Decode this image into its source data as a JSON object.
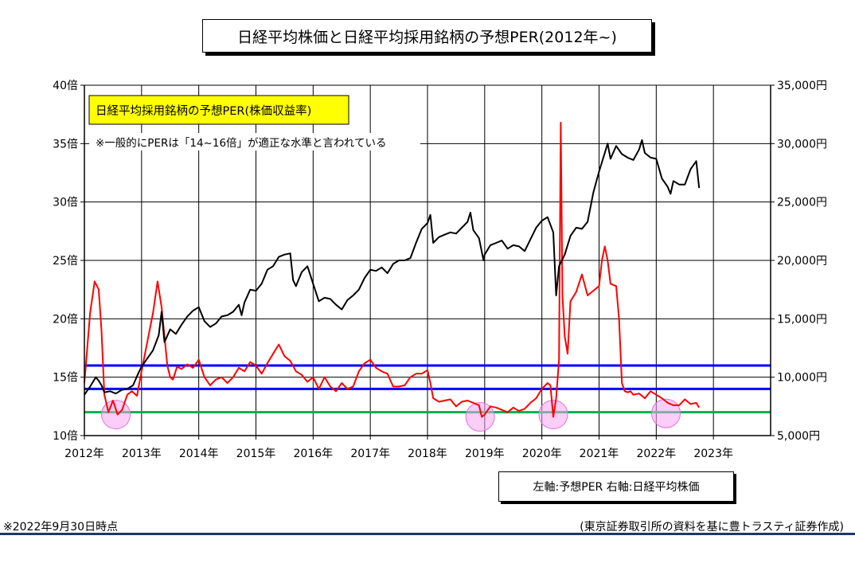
{
  "colors": {
    "per_line": "#ff0000",
    "nikkei_line": "#000000",
    "band": "#0000ff",
    "floor": "#00b050",
    "circle": "#f7a6f0",
    "annotation_bg": "#ffff00",
    "footer_rule": "#1f3864"
  },
  "footer": {
    "date_note": "※2022年9月30日時点",
    "source_note": "(東京証券取引所の資料を基に豊トラスティ証券作成)"
  },
  "chart_data": {
    "type": "line",
    "title": "日経平均株価と日経平均採用銘柄の予想PER(2012年~)",
    "legend_text": "左軸:予想PER 右軸:日経平均株価",
    "annotation_title": "日経平均採用銘柄の予想PER(株価収益率)",
    "annotation_note": "※一般的にPERは「14~16倍」が適正な水準と言われている",
    "x_tick_labels": [
      "2012年",
      "2013年",
      "2014年",
      "2015年",
      "2016年",
      "2017年",
      "2018年",
      "2019年",
      "2020年",
      "2021年",
      "2022年",
      "2023年"
    ],
    "x_ticks": [
      2012,
      2013,
      2014,
      2015,
      2016,
      2017,
      2018,
      2019,
      2020,
      2021,
      2022,
      2023
    ],
    "xlim": [
      2012,
      2024
    ],
    "y_left": {
      "ylim": [
        10,
        40
      ],
      "ticks": [
        10,
        15,
        20,
        25,
        30,
        35,
        40
      ],
      "tick_labels": [
        "10倍",
        "15倍",
        "20倍",
        "25倍",
        "30倍",
        "35倍",
        "40倍"
      ]
    },
    "y_right": {
      "ylim": [
        5000,
        35000
      ],
      "ticks": [
        5000,
        10000,
        15000,
        20000,
        25000,
        30000,
        35000
      ],
      "tick_labels": [
        "5,000円",
        "10,000円",
        "15,000円",
        "20,000円",
        "25,000円",
        "30,000円",
        "35,000円"
      ]
    },
    "grid": true,
    "reference_lines": [
      {
        "axis": "left",
        "value": 16,
        "color": "#0000ff"
      },
      {
        "axis": "left",
        "value": 14,
        "color": "#0000ff"
      },
      {
        "axis": "left",
        "value": 12,
        "color": "#00b050"
      }
    ],
    "highlight_circles": [
      {
        "x": 2012.55,
        "y": 11.8
      },
      {
        "x": 2018.92,
        "y": 11.6
      },
      {
        "x": 2020.2,
        "y": 11.8
      },
      {
        "x": 2022.17,
        "y": 11.9
      }
    ],
    "series": [
      {
        "axis": "left",
        "color": "#ff0000",
        "x": [
          2012.0,
          2012.1,
          2012.18,
          2012.25,
          2012.3,
          2012.35,
          2012.42,
          2012.5,
          2012.58,
          2012.66,
          2012.75,
          2012.83,
          2012.92,
          2013.0,
          2013.1,
          2013.2,
          2013.28,
          2013.35,
          2013.4,
          2013.45,
          2013.5,
          2013.55,
          2013.62,
          2013.7,
          2013.8,
          2013.9,
          2014.0,
          2014.1,
          2014.2,
          2014.3,
          2014.4,
          2014.5,
          2014.6,
          2014.7,
          2014.8,
          2014.9,
          2015.0,
          2015.1,
          2015.2,
          2015.3,
          2015.4,
          2015.5,
          2015.6,
          2015.7,
          2015.8,
          2015.9,
          2016.0,
          2016.1,
          2016.2,
          2016.3,
          2016.4,
          2016.5,
          2016.6,
          2016.7,
          2016.8,
          2016.9,
          2017.0,
          2017.1,
          2017.2,
          2017.3,
          2017.4,
          2017.5,
          2017.6,
          2017.7,
          2017.8,
          2017.9,
          2018.0,
          2018.05,
          2018.1,
          2018.2,
          2018.3,
          2018.4,
          2018.5,
          2018.6,
          2018.7,
          2018.8,
          2018.9,
          2018.95,
          2019.0,
          2019.1,
          2019.2,
          2019.3,
          2019.4,
          2019.5,
          2019.6,
          2019.7,
          2019.8,
          2019.9,
          2020.0,
          2020.1,
          2020.15,
          2020.2,
          2020.25,
          2020.3,
          2020.33,
          2020.36,
          2020.4,
          2020.45,
          2020.5,
          2020.6,
          2020.7,
          2020.8,
          2020.9,
          2021.0,
          2021.05,
          2021.1,
          2021.15,
          2021.2,
          2021.3,
          2021.35,
          2021.4,
          2021.45,
          2021.5,
          2021.55,
          2021.6,
          2021.7,
          2021.8,
          2021.9,
          2022.0,
          2022.1,
          2022.2,
          2022.3,
          2022.4,
          2022.5,
          2022.6,
          2022.7,
          2022.75
        ],
        "values": [
          14.5,
          20.5,
          23.2,
          22.5,
          19.0,
          13.5,
          12.0,
          13.0,
          11.8,
          12.2,
          13.5,
          13.8,
          13.4,
          15.5,
          18.0,
          20.5,
          23.2,
          21.0,
          18.5,
          16.0,
          15.0,
          14.8,
          15.9,
          15.7,
          16.1,
          15.8,
          16.5,
          15.0,
          14.3,
          14.8,
          15.0,
          14.5,
          15.0,
          15.8,
          15.5,
          16.3,
          16.0,
          15.3,
          16.2,
          17.0,
          17.8,
          16.8,
          16.4,
          15.5,
          15.2,
          14.6,
          15.0,
          14.0,
          15.0,
          14.2,
          13.8,
          14.5,
          14.0,
          14.2,
          15.5,
          16.2,
          16.5,
          15.8,
          15.5,
          15.3,
          14.2,
          14.2,
          14.3,
          15.0,
          15.3,
          15.3,
          15.6,
          14.5,
          13.2,
          12.9,
          13.0,
          13.1,
          12.5,
          12.9,
          13.0,
          12.8,
          12.6,
          11.6,
          11.8,
          12.5,
          12.4,
          12.2,
          12.0,
          12.4,
          12.1,
          12.3,
          12.8,
          13.2,
          14.0,
          14.5,
          14.3,
          11.6,
          13.2,
          16.5,
          36.8,
          22.0,
          18.5,
          17.0,
          21.5,
          22.3,
          23.8,
          22.0,
          22.4,
          22.8,
          25.0,
          26.2,
          25.0,
          23.0,
          22.8,
          20.0,
          14.5,
          13.8,
          13.7,
          13.8,
          13.5,
          13.6,
          13.2,
          13.8,
          13.5,
          13.2,
          12.8,
          12.6,
          12.6,
          13.1,
          12.7,
          12.8,
          12.4
        ]
      },
      {
        "axis": "right",
        "color": "#000000",
        "x": [
          2012.0,
          2012.1,
          2012.2,
          2012.25,
          2012.3,
          2012.35,
          2012.45,
          2012.55,
          2012.65,
          2012.75,
          2012.85,
          2012.95,
          2013.0,
          2013.1,
          2013.2,
          2013.3,
          2013.35,
          2013.4,
          2013.5,
          2013.6,
          2013.7,
          2013.8,
          2013.9,
          2014.0,
          2014.1,
          2014.2,
          2014.3,
          2014.4,
          2014.5,
          2014.6,
          2014.7,
          2014.75,
          2014.8,
          2014.9,
          2015.0,
          2015.1,
          2015.2,
          2015.3,
          2015.4,
          2015.5,
          2015.6,
          2015.65,
          2015.7,
          2015.8,
          2015.9,
          2016.0,
          2016.1,
          2016.2,
          2016.3,
          2016.4,
          2016.5,
          2016.6,
          2016.7,
          2016.8,
          2016.9,
          2017.0,
          2017.1,
          2017.2,
          2017.3,
          2017.4,
          2017.5,
          2017.6,
          2017.7,
          2017.8,
          2017.9,
          2018.0,
          2018.05,
          2018.1,
          2018.2,
          2018.3,
          2018.4,
          2018.5,
          2018.6,
          2018.7,
          2018.75,
          2018.8,
          2018.9,
          2018.98,
          2019.0,
          2019.1,
          2019.2,
          2019.3,
          2019.4,
          2019.5,
          2019.6,
          2019.7,
          2019.8,
          2019.9,
          2020.0,
          2020.1,
          2020.2,
          2020.25,
          2020.3,
          2020.4,
          2020.5,
          2020.6,
          2020.7,
          2020.8,
          2020.9,
          2021.0,
          2021.1,
          2021.15,
          2021.2,
          2021.3,
          2021.4,
          2021.5,
          2021.6,
          2021.7,
          2021.75,
          2021.8,
          2021.9,
          2022.0,
          2022.1,
          2022.2,
          2022.25,
          2022.3,
          2022.4,
          2022.5,
          2022.6,
          2022.7,
          2022.75
        ],
        "values": [
          8500,
          9200,
          10000,
          9700,
          9300,
          8700,
          8800,
          8600,
          8900,
          9000,
          9300,
          10400,
          10900,
          11600,
          12300,
          13600,
          15600,
          13000,
          14100,
          13700,
          14500,
          15200,
          15700,
          16000,
          14800,
          14300,
          14600,
          15200,
          15300,
          15600,
          16200,
          15300,
          16400,
          17500,
          17400,
          18000,
          19200,
          19500,
          20300,
          20500,
          20600,
          18300,
          17800,
          19000,
          19500,
          18000,
          16500,
          16800,
          16700,
          16200,
          15800,
          16600,
          17000,
          17500,
          18500,
          19200,
          19100,
          19400,
          18900,
          19700,
          20000,
          20000,
          20200,
          21500,
          22700,
          23200,
          23900,
          21500,
          22000,
          22200,
          22400,
          22300,
          22800,
          23300,
          24100,
          22600,
          21900,
          20000,
          20500,
          21300,
          21500,
          21700,
          21000,
          21300,
          21200,
          20800,
          21800,
          22800,
          23400,
          23700,
          22400,
          17000,
          19500,
          20500,
          22100,
          22800,
          22700,
          23300,
          25800,
          27600,
          29200,
          30000,
          28700,
          29800,
          29100,
          28800,
          28600,
          29500,
          30300,
          29200,
          28800,
          28700,
          27000,
          26300,
          25700,
          26800,
          26500,
          26500,
          27800,
          28500,
          26200
        ]
      }
    ]
  }
}
